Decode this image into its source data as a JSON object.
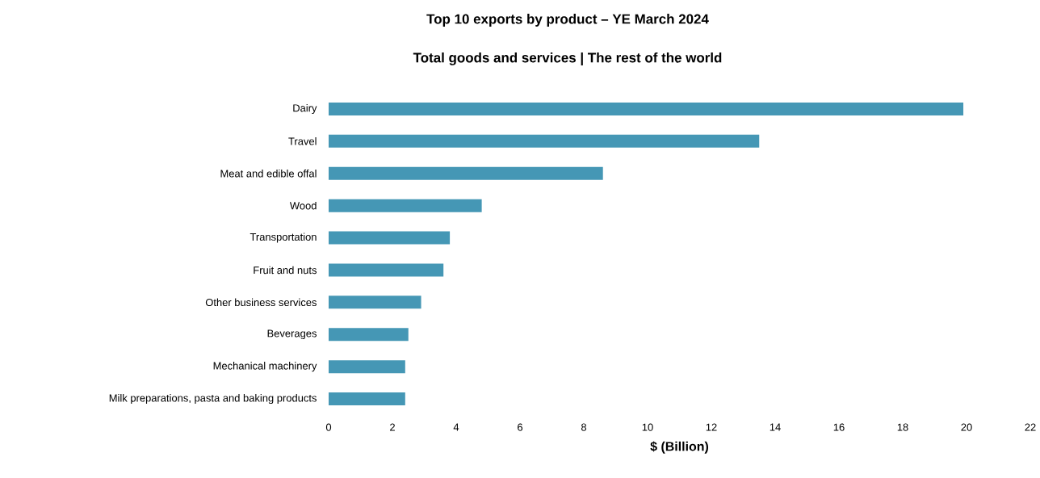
{
  "chart_data": {
    "type": "bar",
    "orientation": "horizontal",
    "title": "Top 10 exports by product – YE March 2024",
    "subtitle": "Total goods and services | The rest of the world",
    "xlabel": "$ (Billion)",
    "categories": [
      "Dairy",
      "Travel",
      "Meat and edible offal",
      "Wood",
      "Transportation",
      "Fruit and nuts",
      "Other business services",
      "Beverages",
      "Mechanical machinery",
      "Milk preparations, pasta and baking products"
    ],
    "values": [
      19.9,
      13.5,
      8.6,
      4.8,
      3.8,
      3.6,
      2.9,
      2.5,
      2.4,
      2.4
    ],
    "color": "#4597b5",
    "xlim": [
      0,
      22
    ],
    "xticks": [
      0,
      2,
      4,
      6,
      8,
      10,
      12,
      14,
      16,
      18,
      20,
      22
    ]
  }
}
